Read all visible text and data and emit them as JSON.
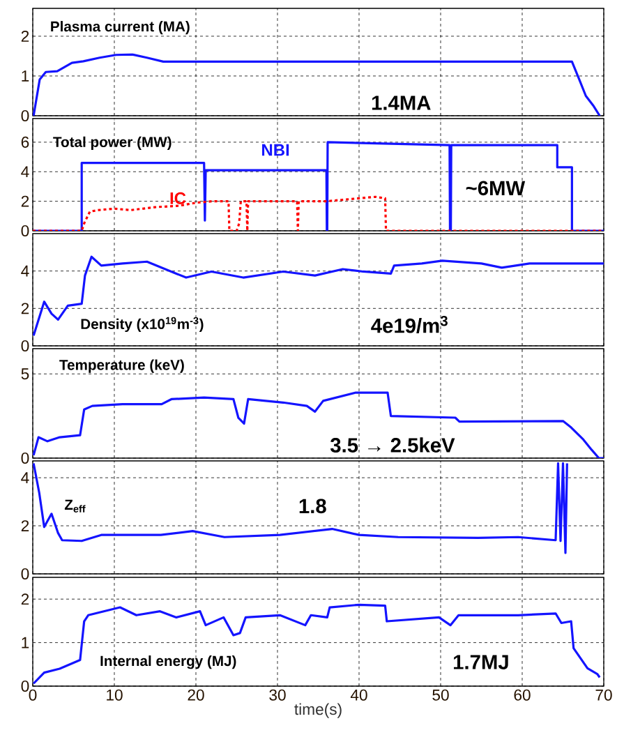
{
  "chart_data": [
    {
      "type": "line",
      "title": "Plasma current (MA)",
      "annotations": [
        "1.4MA"
      ],
      "xlim": [
        0,
        70
      ],
      "xticks": [
        0,
        10,
        20,
        30,
        40,
        50,
        60,
        70
      ],
      "ylim": [
        0,
        2.7
      ],
      "yticks": [
        0,
        1,
        2
      ],
      "grid": true,
      "tick_labels": "y",
      "series": [
        {
          "color": "#1414ff",
          "x": [
            0.1,
            0.85,
            1.6,
            3.0,
            4.8,
            6.2,
            8.2,
            10.2,
            12.2,
            14.0,
            16.0,
            30,
            45,
            60,
            66.1,
            67.0,
            67.8,
            68.7,
            69.5
          ],
          "values": [
            0,
            0.91,
            1.1,
            1.12,
            1.33,
            1.37,
            1.46,
            1.53,
            1.54,
            1.46,
            1.36,
            1.36,
            1.36,
            1.36,
            1.36,
            0.91,
            0.5,
            0.26,
            0
          ]
        }
      ]
    },
    {
      "type": "line",
      "title": "Total power (MW)",
      "annotations": [
        "~6MW"
      ],
      "xlim": [
        0,
        70
      ],
      "xticks": [
        0,
        10,
        20,
        30,
        40,
        50,
        60,
        70
      ],
      "ylim": [
        0,
        7.6
      ],
      "yticks": [
        0,
        2,
        4,
        6
      ],
      "grid": true,
      "tick_labels": "y",
      "series": [
        {
          "name": "NBI",
          "color": "#1414ff",
          "line_style": "solid",
          "x": [
            0,
            6.0,
            6.0,
            21.0,
            21.1,
            21.2,
            36.0,
            36.05,
            36.1,
            36.15,
            51.1,
            51.15,
            51.25,
            51.3,
            64.3,
            64.3,
            66.1,
            66.1,
            70
          ],
          "values": [
            0,
            0,
            4.6,
            4.6,
            0.7,
            4.1,
            4.1,
            0,
            0,
            6.0,
            5.8,
            0,
            0,
            5.8,
            5.8,
            4.3,
            4.3,
            0,
            0
          ]
        },
        {
          "name": "IC",
          "color": "#ff0000",
          "line_style": "dashed",
          "x": [
            0,
            6.0,
            6.3,
            7,
            8,
            10,
            12,
            15,
            18,
            20,
            22,
            24.0,
            24.1,
            25.0,
            25.3,
            25.5,
            26.2,
            26.3,
            26.4,
            30,
            32.4,
            32.5,
            32.6,
            36,
            38,
            40,
            42,
            43.2,
            43.3,
            70
          ],
          "values": [
            0,
            0,
            0.5,
            1.3,
            1.4,
            1.5,
            1.4,
            1.6,
            1.7,
            1.9,
            2.0,
            2.0,
            0,
            0,
            0.5,
            2.0,
            2.0,
            0,
            2.0,
            2.0,
            2.0,
            0,
            2.0,
            2.0,
            2.1,
            2.2,
            2.3,
            2.2,
            0,
            0
          ]
        }
      ]
    },
    {
      "type": "line",
      "title": "Density (x10$^{19}$m$^{-3}$)",
      "annotations": [
        "4e19/m$^{3}$"
      ],
      "xlim": [
        0,
        70
      ],
      "xticks": [
        0,
        10,
        20,
        30,
        40,
        50,
        60,
        70
      ],
      "ylim": [
        0,
        6
      ],
      "yticks": [
        0,
        2,
        4
      ],
      "grid": true,
      "tick_labels": "y",
      "series": [
        {
          "color": "#1414ff",
          "x": [
            0.1,
            1.4,
            2.3,
            3.1,
            4.3,
            6.0,
            6.4,
            7.2,
            8.4,
            11,
            14,
            16.4,
            18.8,
            21.9,
            25.8,
            30.7,
            34.6,
            38,
            40.5,
            43.9,
            44.3,
            47.7,
            50.2,
            55,
            57.5,
            60.9,
            70
          ],
          "values": [
            0.55,
            2.36,
            1.72,
            1.4,
            2.15,
            2.25,
            3.76,
            4.76,
            4.29,
            4.4,
            4.5,
            4.07,
            3.65,
            3.97,
            3.65,
            3.97,
            3.76,
            4.1,
            3.97,
            3.86,
            4.29,
            4.4,
            4.55,
            4.4,
            4.18,
            4.4,
            4.4
          ]
        }
      ]
    },
    {
      "type": "line",
      "title": "Temperature (keV)",
      "annotations": [
        "3.5 → 2.5keV"
      ],
      "xlim": [
        0,
        70
      ],
      "xticks": [
        0,
        10,
        20,
        30,
        40,
        50,
        60,
        70
      ],
      "ylim": [
        0,
        6.5
      ],
      "yticks": [
        0,
        5
      ],
      "grid": true,
      "tick_labels": "y",
      "series": [
        {
          "color": "#1414ff",
          "x": [
            0.1,
            0.7,
            1.8,
            3.3,
            5.8,
            6.3,
            7.3,
            11,
            15.8,
            17,
            21,
            24.6,
            25.2,
            25.9,
            26.4,
            30.7,
            33.6,
            34.6,
            35.6,
            39.6,
            43.5,
            43.9,
            51.8,
            52.3,
            65,
            66,
            67.5,
            68.5,
            69.4,
            70
          ],
          "values": [
            0.17,
            1.24,
            1.0,
            1.24,
            1.36,
            2.89,
            3.1,
            3.2,
            3.2,
            3.5,
            3.6,
            3.5,
            2.4,
            2.05,
            3.5,
            3.3,
            3.1,
            2.76,
            3.4,
            3.89,
            3.89,
            2.5,
            2.4,
            2.17,
            2.2,
            1.82,
            1.1,
            0.5,
            0,
            0
          ]
        }
      ]
    },
    {
      "type": "line",
      "title": "Z$_{eff}$",
      "annotations": [
        "1.8"
      ],
      "xlim": [
        0,
        70
      ],
      "xticks": [
        0,
        10,
        20,
        30,
        40,
        50,
        60,
        70
      ],
      "ylim": [
        0,
        4.7
      ],
      "yticks": [
        0,
        2,
        4
      ],
      "grid": true,
      "tick_labels": "y",
      "series": [
        {
          "color": "#1414ff",
          "x": [
            0.1,
            0.8,
            1.4,
            2.3,
            3.1,
            3.6,
            6.0,
            8.4,
            15.7,
            19.6,
            23.5,
            30.3,
            36.7,
            40,
            44.8,
            54.6,
            59.5,
            64.1,
            64.4,
            64.7,
            65.0,
            65.3,
            65.5
          ],
          "values": [
            4.6,
            3.36,
            1.95,
            2.5,
            1.7,
            1.4,
            1.37,
            1.62,
            1.62,
            1.78,
            1.53,
            1.62,
            1.87,
            1.62,
            1.53,
            1.5,
            1.53,
            1.4,
            4.6,
            1.37,
            4.6,
            0.87,
            4.6
          ]
        }
      ]
    },
    {
      "type": "line",
      "title": "Internal energy (MJ)",
      "annotations": [
        "1.7MJ"
      ],
      "xlabel": "time(s)",
      "xlim": [
        0,
        70
      ],
      "xticks": [
        0,
        10,
        20,
        30,
        40,
        50,
        60,
        70
      ],
      "ylim": [
        0,
        2.5
      ],
      "yticks": [
        0,
        1,
        2
      ],
      "grid": true,
      "series": [
        {
          "color": "#1414ff",
          "x": [
            0.1,
            1.4,
            3.3,
            5.8,
            6.3,
            6.8,
            10.7,
            12.7,
            15.6,
            17.6,
            20.5,
            21.2,
            23.4,
            24.6,
            25.4,
            26.1,
            30.3,
            33.4,
            34.1,
            36.1,
            36.4,
            40,
            43.2,
            43.4,
            49.8,
            51.2,
            52.2,
            59.5,
            64.1,
            64.8,
            66,
            66.3,
            68,
            69.2,
            69.5
          ],
          "values": [
            0.06,
            0.31,
            0.4,
            0.6,
            1.49,
            1.63,
            1.81,
            1.63,
            1.72,
            1.58,
            1.72,
            1.4,
            1.58,
            1.17,
            1.22,
            1.58,
            1.63,
            1.4,
            1.63,
            1.58,
            1.81,
            1.87,
            1.85,
            1.49,
            1.58,
            1.4,
            1.63,
            1.63,
            1.67,
            1.45,
            1.49,
            0.87,
            0.41,
            0.28,
            0.2
          ]
        }
      ]
    }
  ]
}
